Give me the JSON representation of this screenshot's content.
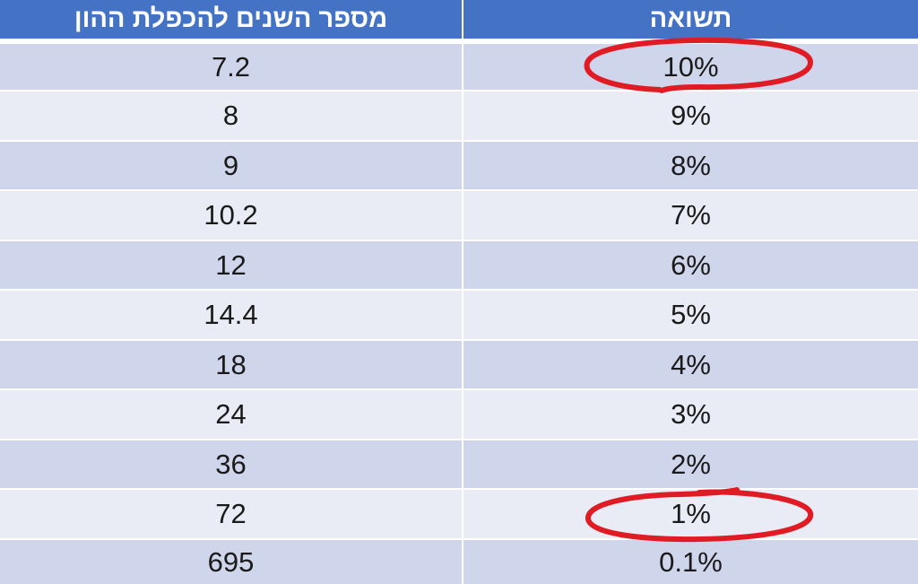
{
  "table": {
    "headers": {
      "years_to_double": "מספר השנים להכפלת ההון",
      "return": "תשואה"
    },
    "rows": [
      {
        "years": "7.2",
        "return": "10%"
      },
      {
        "years": "8",
        "return": "9%"
      },
      {
        "years": "9",
        "return": "8%"
      },
      {
        "years": "10.2",
        "return": "7%"
      },
      {
        "years": "12",
        "return": "6%"
      },
      {
        "years": "14.4",
        "return": "5%"
      },
      {
        "years": "18",
        "return": "4%"
      },
      {
        "years": "24",
        "return": "3%"
      },
      {
        "years": "36",
        "return": "2%"
      },
      {
        "years": "72",
        "return": "1%"
      },
      {
        "years": "695",
        "return": "0.1%"
      }
    ]
  },
  "colors": {
    "header_bg": "#4472c4",
    "row_odd": "#cfd5ea",
    "row_even": "#e9ebf5",
    "annotation": "#e01b24"
  },
  "annotations": [
    {
      "type": "hand-drawn-circle",
      "highlights_value": "10%"
    },
    {
      "type": "hand-drawn-circle",
      "highlights_value": "1%"
    }
  ]
}
